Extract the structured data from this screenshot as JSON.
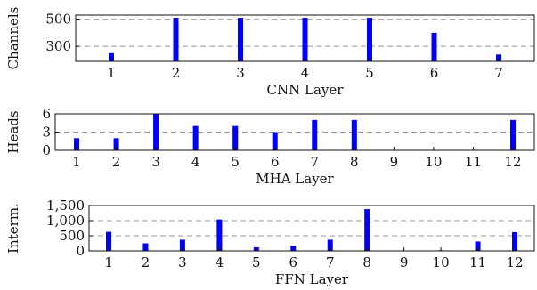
{
  "colors": {
    "bar": "#0000ff"
  },
  "chart_data": [
    {
      "type": "bar",
      "categories": [
        "1",
        "2",
        "3",
        "4",
        "5",
        "6",
        "7"
      ],
      "values": [
        250,
        510,
        510,
        510,
        510,
        400,
        240
      ],
      "xlabel": "CNN Layer",
      "ylabel": "Channels",
      "ylim": [
        190,
        530
      ],
      "yticks": [
        300,
        500
      ],
      "ytick_labels": [
        "300",
        "500"
      ],
      "grid": "horizontal-dashed"
    },
    {
      "type": "bar",
      "categories": [
        "1",
        "2",
        "3",
        "4",
        "5",
        "6",
        "7",
        "8",
        "9",
        "10",
        "11",
        "12"
      ],
      "values": [
        2,
        2,
        6,
        4,
        4,
        3,
        5,
        5,
        0,
        0,
        0,
        5
      ],
      "xlabel": "MHA Layer",
      "ylabel": "Heads",
      "ylim": [
        0,
        6
      ],
      "yticks": [
        0,
        3,
        6
      ],
      "ytick_labels": [
        "0",
        "3",
        "6"
      ],
      "grid": "horizontal-dashed"
    },
    {
      "type": "bar",
      "categories": [
        "1",
        "2",
        "3",
        "4",
        "5",
        "6",
        "7",
        "8",
        "9",
        "10",
        "11",
        "12"
      ],
      "values": [
        630,
        250,
        370,
        1040,
        120,
        170,
        370,
        1380,
        0,
        20,
        310,
        620
      ],
      "xlabel": "FFN Layer",
      "ylabel": "Interm.",
      "ylim": [
        0,
        1500
      ],
      "yticks": [
        0,
        500,
        1000,
        1500
      ],
      "ytick_labels": [
        "0",
        "500",
        "1,000",
        "1,500"
      ],
      "grid": "horizontal-dashed"
    }
  ]
}
